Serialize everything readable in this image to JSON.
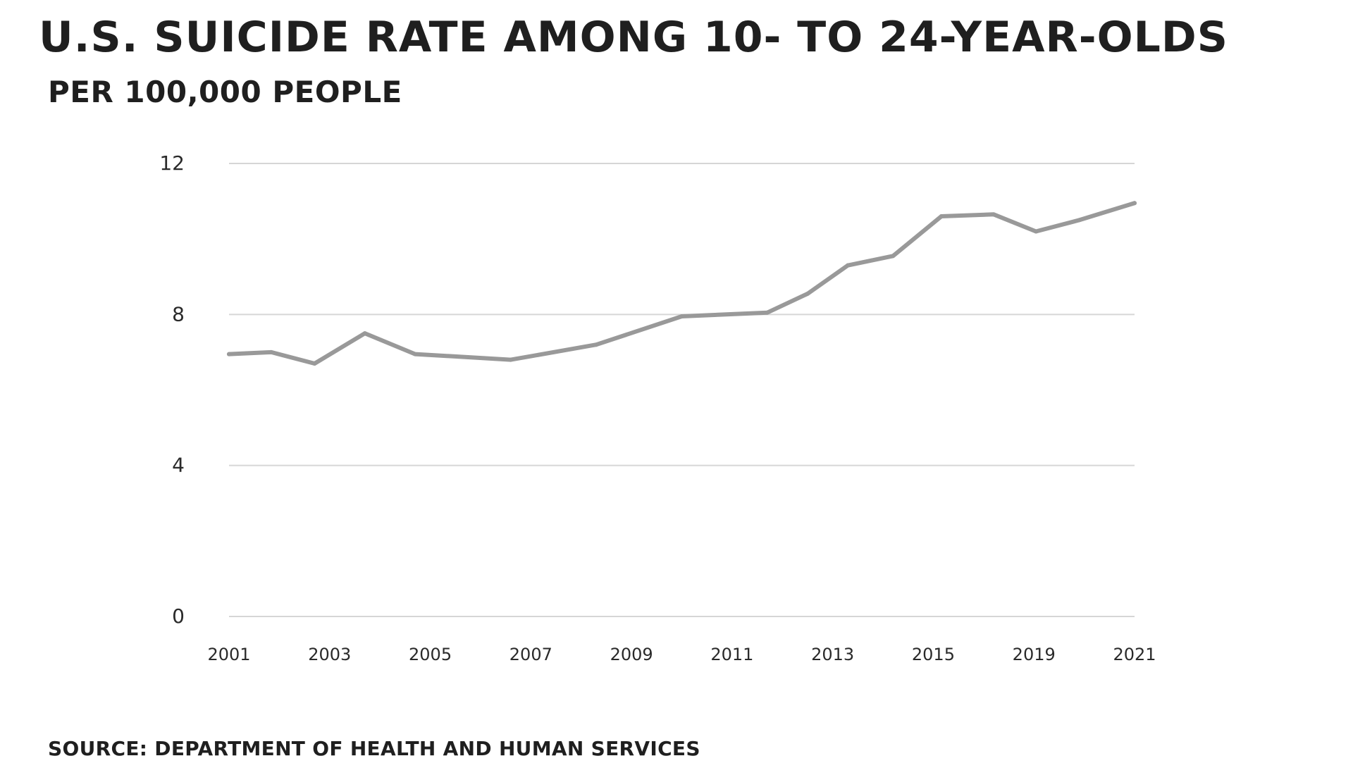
{
  "chart_data": {
    "type": "line",
    "title": "U.S. SUICIDE RATE AMONG 10- TO 24-YEAR-OLDS",
    "subtitle": "PER 100,000 PEOPLE",
    "source": "SOURCE: DEPARTMENT OF HEALTH AND HUMAN SERVICES",
    "xlabel": "",
    "ylabel": "",
    "ylim": [
      0,
      12
    ],
    "yticks": [
      0,
      4,
      8,
      12
    ],
    "xticks": [
      "2001",
      "2003",
      "2005",
      "2007",
      "2009",
      "2011",
      "2013",
      "2015",
      "2019",
      "2021"
    ],
    "grid": true,
    "series": [
      {
        "color": "#999999",
        "points": [
          {
            "x": 0.0,
            "y": 6.95
          },
          {
            "x": 0.42,
            "y": 7.0
          },
          {
            "x": 0.85,
            "y": 6.7
          },
          {
            "x": 1.35,
            "y": 7.5
          },
          {
            "x": 1.85,
            "y": 6.95
          },
          {
            "x": 2.8,
            "y": 6.8
          },
          {
            "x": 3.65,
            "y": 7.2
          },
          {
            "x": 4.5,
            "y": 7.95
          },
          {
            "x": 5.35,
            "y": 8.05
          },
          {
            "x": 5.75,
            "y": 8.55
          },
          {
            "x": 6.15,
            "y": 9.3
          },
          {
            "x": 6.6,
            "y": 9.55
          },
          {
            "x": 7.08,
            "y": 10.6
          },
          {
            "x": 7.6,
            "y": 10.65
          },
          {
            "x": 8.02,
            "y": 10.2
          },
          {
            "x": 8.45,
            "y": 10.5
          },
          {
            "x": 9.0,
            "y": 10.95
          }
        ]
      }
    ]
  }
}
